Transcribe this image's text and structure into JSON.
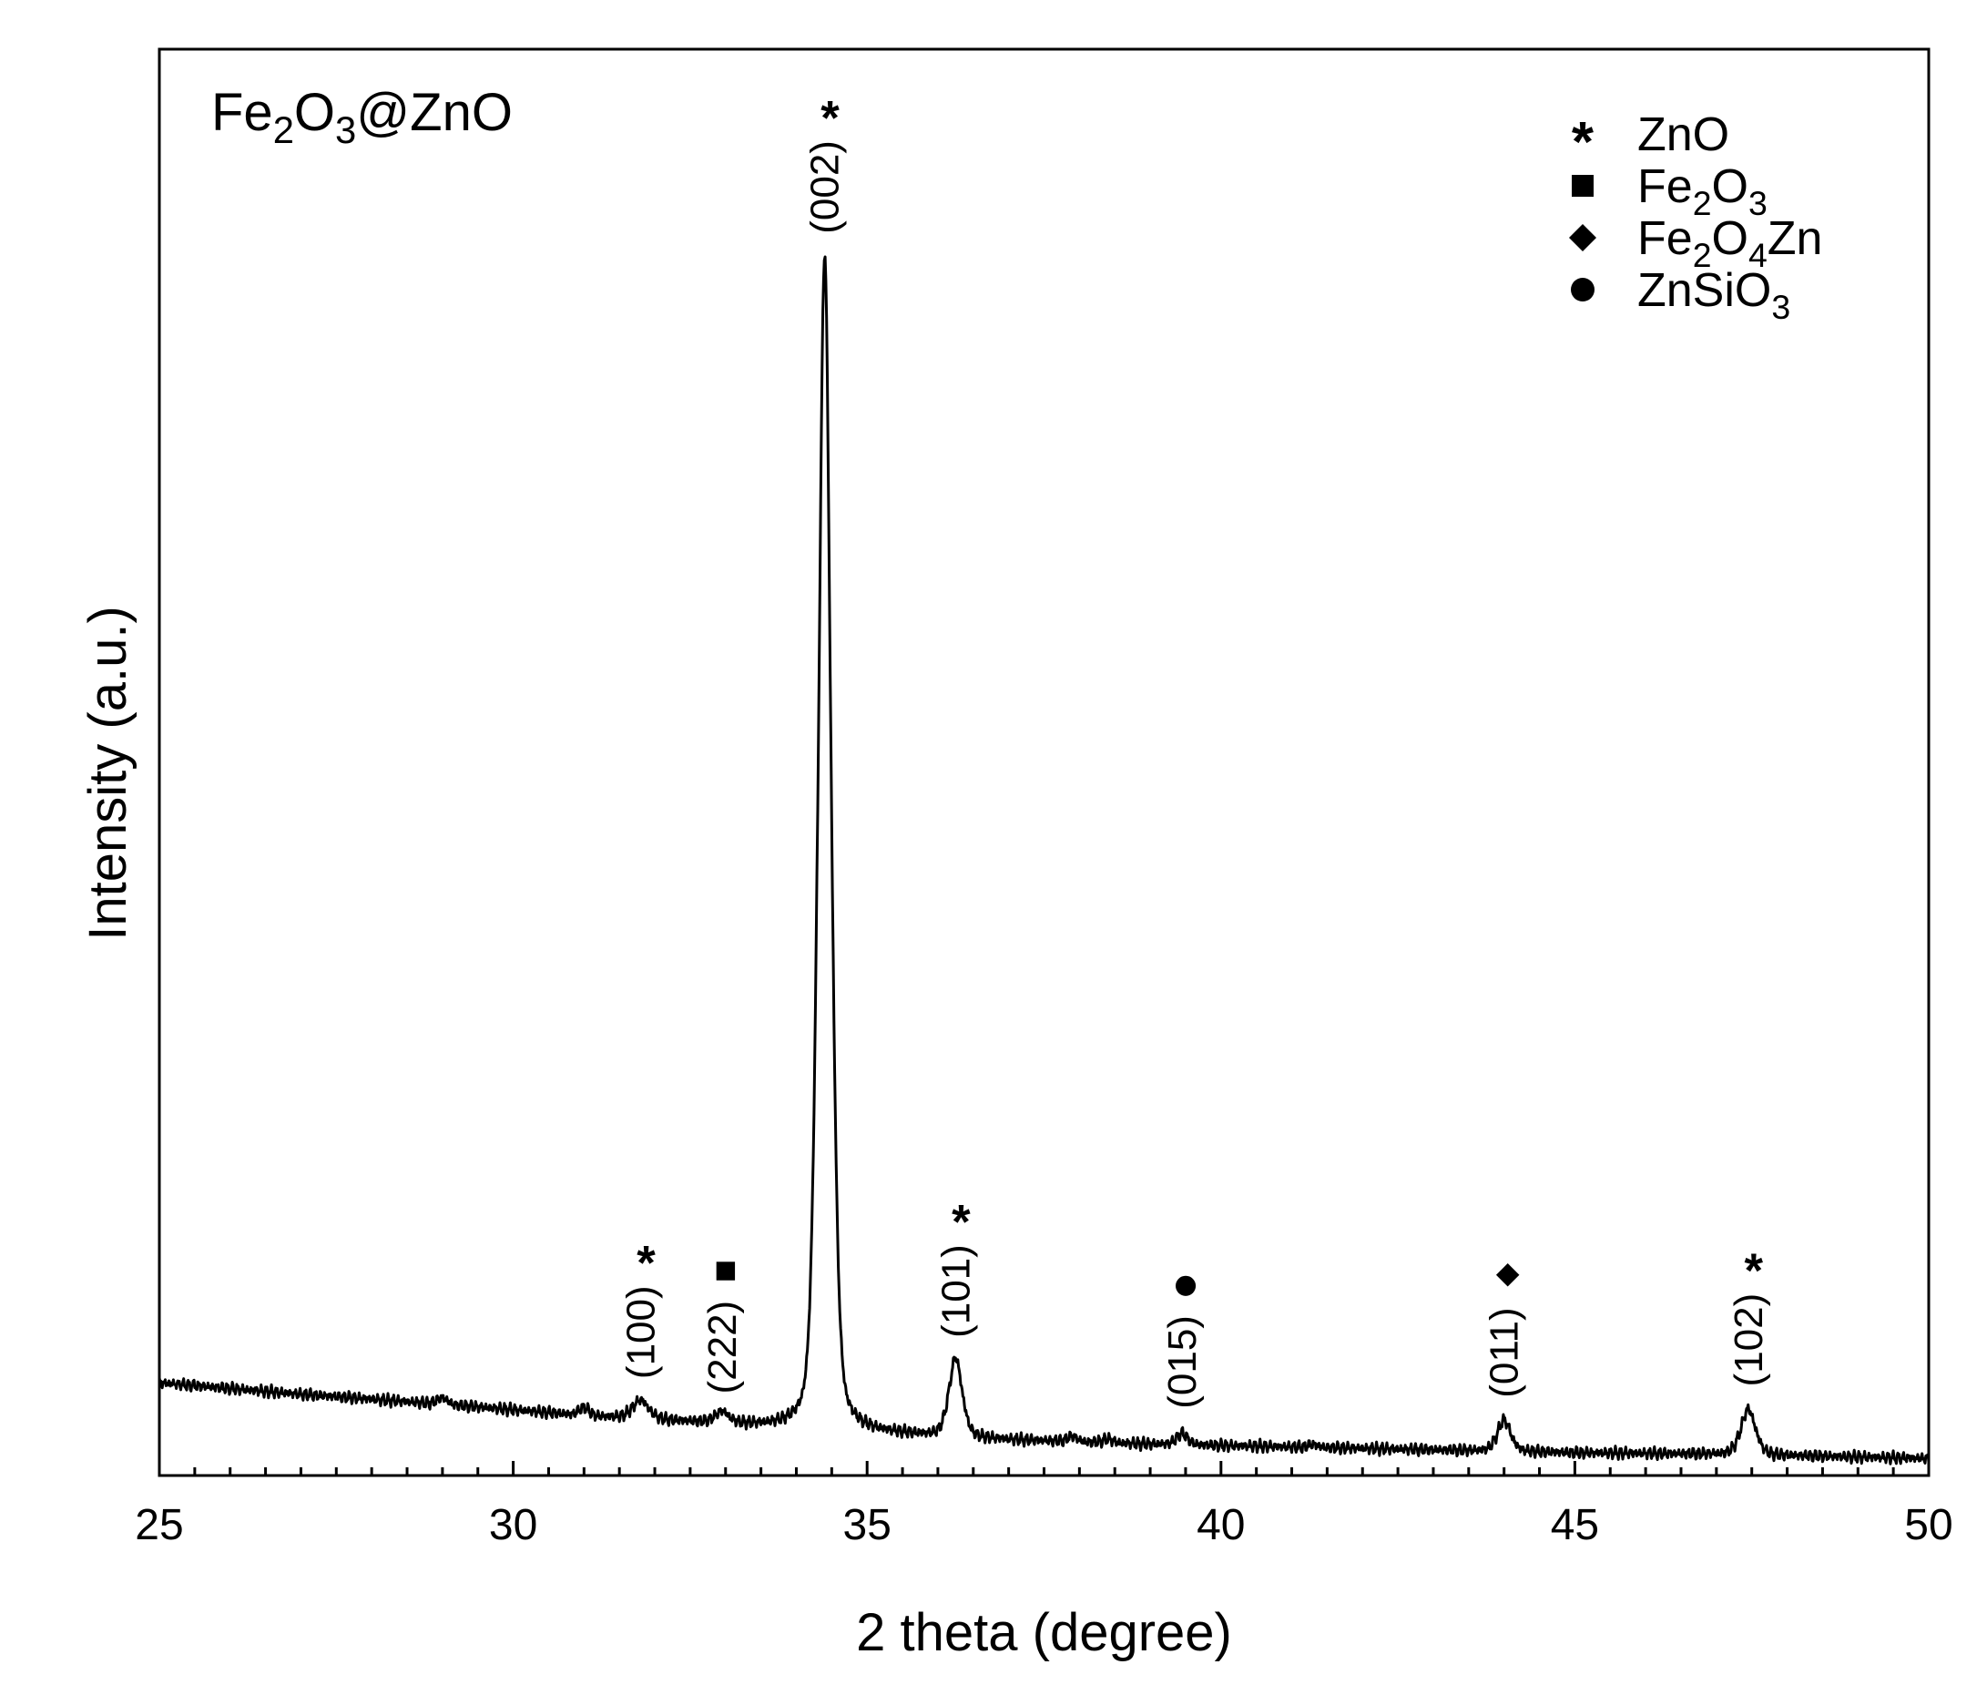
{
  "chart_data": {
    "type": "line",
    "sample_label": {
      "parts": [
        [
          "Fe",
          ""
        ],
        [
          "2",
          "sub"
        ],
        [
          "O",
          ""
        ],
        [
          "3",
          "sub"
        ],
        [
          "@ZnO",
          ""
        ]
      ]
    },
    "xlabel": "2 theta (degree)",
    "ylabel": "Intensity (a.u.)",
    "xlim": [
      25,
      50
    ],
    "ylim": [
      0,
      100
    ],
    "x_ticks": [
      "25",
      "30",
      "35",
      "40",
      "45",
      "50"
    ],
    "x_tick_values": [
      25,
      30,
      35,
      40,
      45,
      50
    ],
    "x_minor_step": 0.5,
    "y_ticks_shown": false,
    "grid": false,
    "line_color": "#000000",
    "baseline": [
      [
        25,
        6.5
      ],
      [
        27,
        5.7
      ],
      [
        29,
        5.0
      ],
      [
        31,
        4.2
      ],
      [
        33,
        3.6
      ],
      [
        35,
        3.0
      ],
      [
        37,
        2.5
      ],
      [
        39,
        2.2
      ],
      [
        41,
        2.0
      ],
      [
        43,
        1.8
      ],
      [
        45,
        1.6
      ],
      [
        47,
        1.5
      ],
      [
        50,
        1.2
      ]
    ],
    "peaks": [
      {
        "x": 31.8,
        "height": 1.3,
        "width": 0.12,
        "hkl": "(100)",
        "phase": "ZnO",
        "marker": "asterisk"
      },
      {
        "x": 32.95,
        "height": 0.8,
        "width": 0.1,
        "hkl": "(222)",
        "phase": "Fe₂O₃",
        "marker": "square"
      },
      {
        "x": 34.4,
        "height": 82.5,
        "width": 0.095,
        "hkl": "(002)",
        "phase": "ZnO",
        "marker": "asterisk"
      },
      {
        "x": 36.25,
        "height": 5.5,
        "width": 0.1,
        "hkl": "(101)",
        "phase": "ZnO",
        "marker": "asterisk"
      },
      {
        "x": 39.45,
        "height": 0.8,
        "width": 0.08,
        "hkl": "(015)",
        "phase": "ZnSiO₃",
        "marker": "circle"
      },
      {
        "x": 44.0,
        "height": 2.2,
        "width": 0.1,
        "hkl": "(011)",
        "phase": "Fe₂O₄Zn",
        "marker": "diamond"
      },
      {
        "x": 47.45,
        "height": 3.2,
        "width": 0.11,
        "hkl": "(102)",
        "phase": "ZnO",
        "marker": "asterisk"
      }
    ],
    "small_bumps": [
      [
        29.0,
        0.45
      ],
      [
        31.0,
        0.55
      ],
      [
        37.9,
        0.35
      ],
      [
        38.4,
        0.25
      ],
      [
        41.3,
        0.2
      ]
    ],
    "legend": {
      "position": "top-right",
      "items": [
        {
          "marker": "asterisk",
          "parts": [
            [
              "ZnO",
              ""
            ]
          ]
        },
        {
          "marker": "square",
          "parts": [
            [
              "Fe",
              ""
            ],
            [
              "2",
              "sub"
            ],
            [
              "O",
              ""
            ],
            [
              "3",
              "sub"
            ]
          ]
        },
        {
          "marker": "diamond",
          "parts": [
            [
              "Fe",
              ""
            ],
            [
              "2",
              "sub"
            ],
            [
              "O",
              ""
            ],
            [
              "4",
              "sub"
            ],
            [
              "Zn",
              ""
            ]
          ]
        },
        {
          "marker": "circle",
          "parts": [
            [
              "ZnSiO",
              ""
            ],
            [
              "3",
              "sub"
            ]
          ]
        }
      ]
    }
  }
}
